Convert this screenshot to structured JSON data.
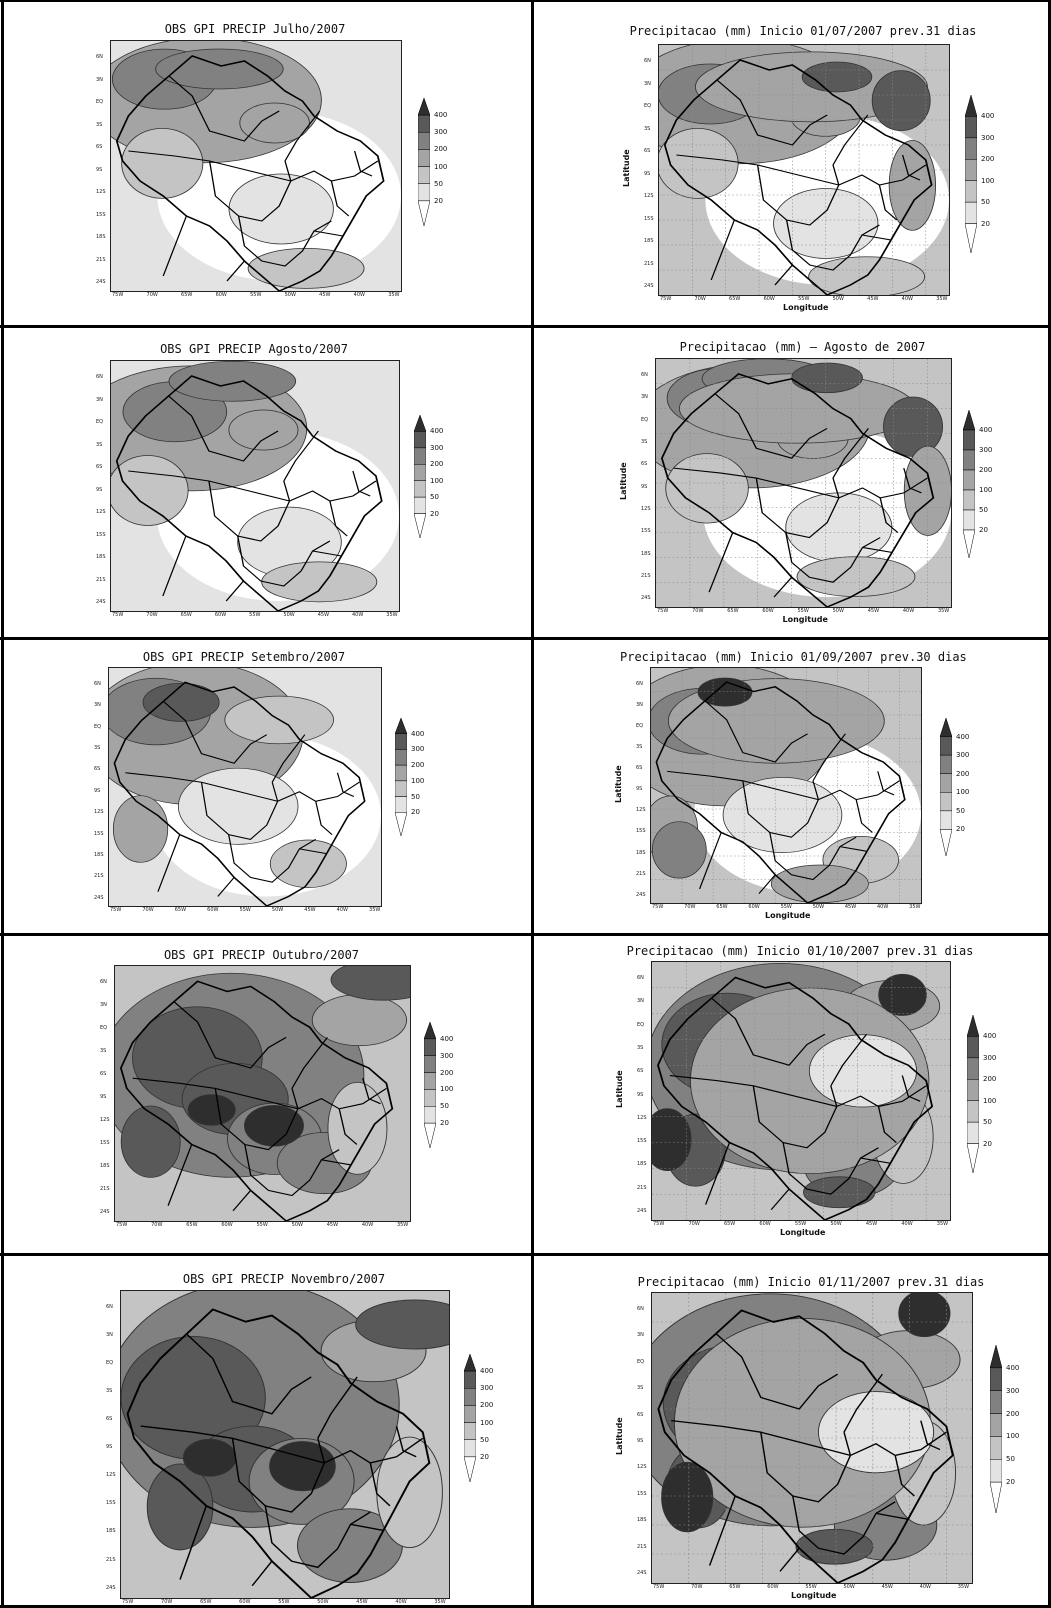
{
  "legend": {
    "levels": [
      "20",
      "50",
      "100",
      "200",
      "300",
      "400"
    ],
    "shades": [
      "#ffffff",
      "#e3e3e3",
      "#c4c4c4",
      "#a4a4a4",
      "#818181",
      "#595959",
      "#2e2e2e"
    ]
  },
  "axis": {
    "lon_ticks": [
      "75W",
      "70W",
      "65W",
      "60W",
      "55W",
      "50W",
      "45W",
      "40W",
      "35W"
    ],
    "lat_ticks": [
      "6N",
      "3N",
      "EQ",
      "3S",
      "6S",
      "9S",
      "12S",
      "15S",
      "18S",
      "21S",
      "24S"
    ],
    "xlabel": "Longitude",
    "ylabel": "Latitude"
  },
  "panels": [
    {
      "title": "OBS GPI PRECIP Julho/2007",
      "kind": "obs",
      "level": "low"
    },
    {
      "title": "Precipitacao (mm) Inicio 01/07/2007 prev.31 dias",
      "kind": "fcst",
      "level": "low"
    },
    {
      "title": "OBS GPI PRECIP Agosto/2007",
      "kind": "obs",
      "level": "low"
    },
    {
      "title": "Precipitacao (mm) – Agosto de 2007",
      "kind": "fcst",
      "level": "low"
    },
    {
      "title": "OBS GPI PRECIP Setembro/2007",
      "kind": "obs",
      "level": "mid"
    },
    {
      "title": "Precipitacao (mm) Inicio 01/09/2007 prev.30 dias",
      "kind": "fcst",
      "level": "mid"
    },
    {
      "title": "OBS GPI PRECIP Outubro/2007",
      "kind": "obs",
      "level": "high"
    },
    {
      "title": "Precipitacao (mm) Inicio 01/10/2007 prev.31 dias",
      "kind": "fcst",
      "level": "high"
    },
    {
      "title": "OBS GPI PRECIP Novembro/2007",
      "kind": "obs",
      "level": "high"
    },
    {
      "title": "Precipitacao (mm) Inicio 01/11/2007 prev.31 dias",
      "kind": "fcst",
      "level": "high"
    }
  ]
}
